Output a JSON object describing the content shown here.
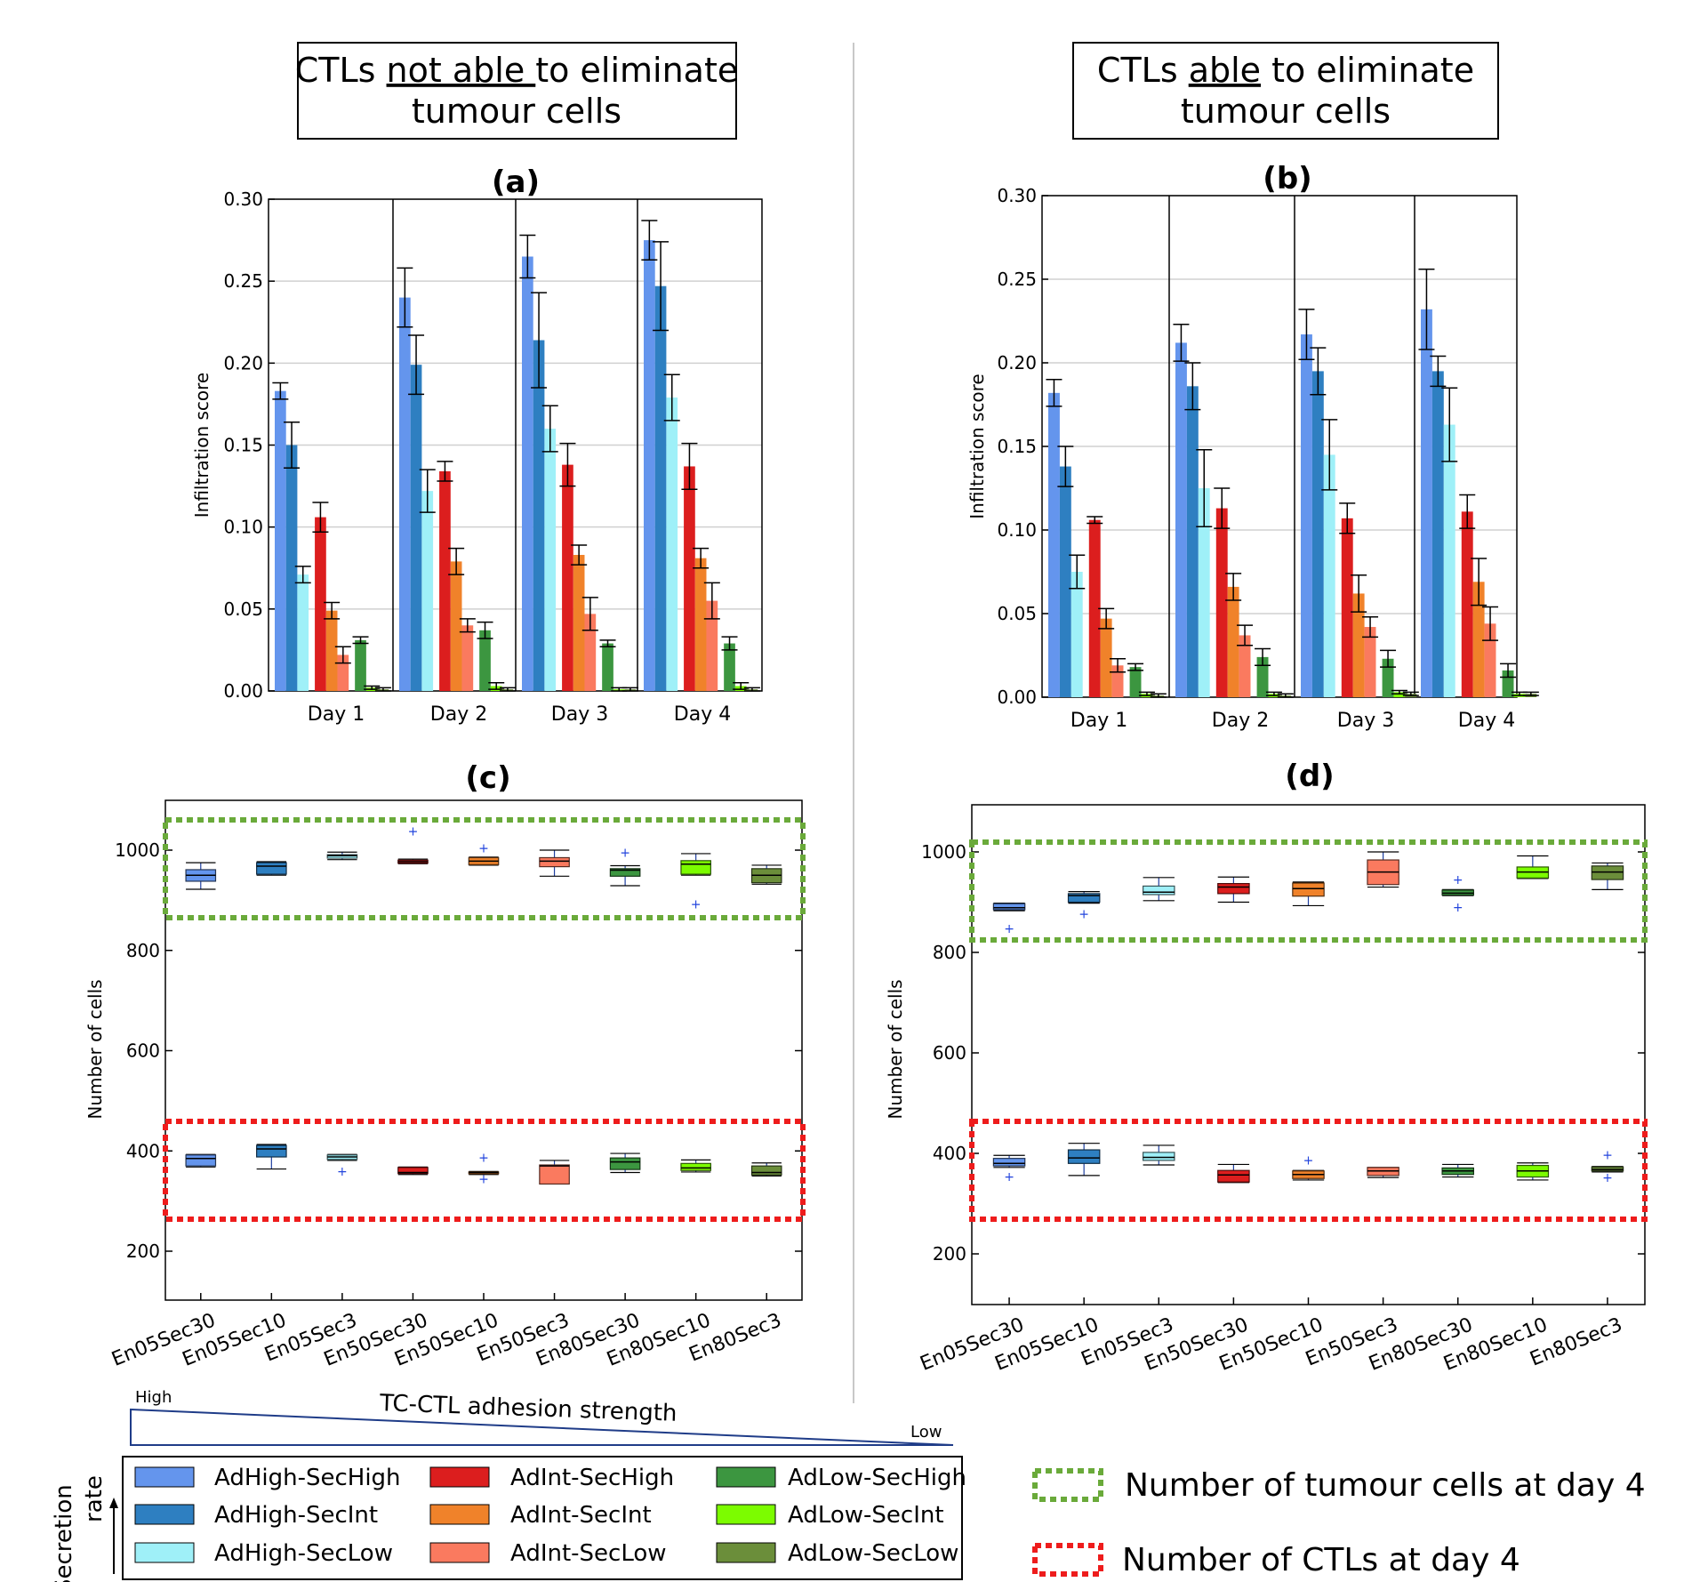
{
  "headers": {
    "left": {
      "pre": "CTLs ",
      "emph": "not able ",
      "post": "to eliminate",
      "line2": "tumour cells"
    },
    "right": {
      "pre": "CTLs ",
      "emph": "able",
      "post": " to eliminate",
      "line2": "tumour cells"
    }
  },
  "panel_labels": {
    "a": "(a)",
    "b": "(b)",
    "c": "(c)",
    "d": "(d)"
  },
  "colors": {
    "AdHigh-SecHigh": "#6495ed",
    "AdHigh-SecInt": "#2e7fc1",
    "AdHigh-SecLow": "#9ff0f8",
    "AdInt-SecHigh": "#dc1e1e",
    "AdInt-SecInt": "#f0822a",
    "AdInt-SecLow": "#fa7a5f",
    "AdLow-SecHigh": "#3c9640",
    "AdLow-SecInt": "#7cfc00",
    "AdLow-SecLow": "#6b8e3a",
    "tumour_box": "#6aaa3a",
    "ctl_box": "#ee1c1c"
  },
  "legend": {
    "entries": [
      "AdHigh-SecHigh",
      "AdHigh-SecInt",
      "AdHigh-SecLow",
      "AdInt-SecHigh",
      "AdInt-SecInt",
      "AdInt-SecLow",
      "AdLow-SecHigh",
      "AdLow-SecInt",
      "AdLow-SecLow"
    ],
    "secretion_label_1": "Secretion",
    "secretion_label_2": "rate",
    "adhesion_title": "TC-CTL adhesion strength",
    "adhesion_high": "High",
    "adhesion_low": "Low"
  },
  "key": {
    "tumour": "Number of tumour cells at day 4",
    "ctl": "Number of CTLs at day 4"
  },
  "chart_data": [
    {
      "id": "a",
      "type": "bar",
      "title": "(a)",
      "ylabel": "Infiltration score",
      "xlabel": "",
      "ylim": [
        0,
        0.3
      ],
      "yticks": [
        "0.00",
        "0.05",
        "0.10",
        "0.15",
        "0.20",
        "0.25",
        "0.30"
      ],
      "categories": [
        "Day 1",
        "Day 2",
        "Day 3",
        "Day 4"
      ],
      "series": [
        {
          "name": "AdHigh-SecHigh",
          "values": [
            0.183,
            0.24,
            0.265,
            0.275
          ],
          "errors": [
            0.005,
            0.018,
            0.013,
            0.012
          ]
        },
        {
          "name": "AdHigh-SecInt",
          "values": [
            0.15,
            0.199,
            0.214,
            0.247
          ],
          "errors": [
            0.014,
            0.018,
            0.029,
            0.027
          ]
        },
        {
          "name": "AdHigh-SecLow",
          "values": [
            0.071,
            0.122,
            0.16,
            0.179
          ],
          "errors": [
            0.005,
            0.013,
            0.014,
            0.014
          ]
        },
        {
          "name": "AdInt-SecHigh",
          "values": [
            0.106,
            0.134,
            0.138,
            0.137
          ],
          "errors": [
            0.009,
            0.006,
            0.013,
            0.014
          ]
        },
        {
          "name": "AdInt-SecInt",
          "values": [
            0.049,
            0.079,
            0.083,
            0.081
          ],
          "errors": [
            0.005,
            0.008,
            0.006,
            0.006
          ]
        },
        {
          "name": "AdInt-SecLow",
          "values": [
            0.022,
            0.04,
            0.047,
            0.055
          ],
          "errors": [
            0.005,
            0.004,
            0.01,
            0.011
          ]
        },
        {
          "name": "AdLow-SecHigh",
          "values": [
            0.031,
            0.037,
            0.029,
            0.029
          ],
          "errors": [
            0.002,
            0.005,
            0.002,
            0.004
          ]
        },
        {
          "name": "AdLow-SecInt",
          "values": [
            0.002,
            0.003,
            0.001,
            0.003
          ],
          "errors": [
            0.001,
            0.002,
            0.001,
            0.002
          ]
        },
        {
          "name": "AdLow-SecLow",
          "values": [
            0.001,
            0.001,
            0.001,
            0.001
          ],
          "errors": [
            0.001,
            0.001,
            0.001,
            0.001
          ]
        }
      ]
    },
    {
      "id": "b",
      "type": "bar",
      "title": "(b)",
      "ylabel": "Infiltration score",
      "xlabel": "",
      "ylim": [
        0,
        0.3
      ],
      "yticks": [
        "0.00",
        "0.05",
        "0.10",
        "0.15",
        "0.20",
        "0.25",
        "0.30"
      ],
      "categories": [
        "Day 1",
        "Day 2",
        "Day 3",
        "Day 4"
      ],
      "series": [
        {
          "name": "AdHigh-SecHigh",
          "values": [
            0.182,
            0.212,
            0.217,
            0.232
          ],
          "errors": [
            0.008,
            0.011,
            0.015,
            0.024
          ]
        },
        {
          "name": "AdHigh-SecInt",
          "values": [
            0.138,
            0.186,
            0.195,
            0.195
          ],
          "errors": [
            0.012,
            0.014,
            0.014,
            0.009
          ]
        },
        {
          "name": "AdHigh-SecLow",
          "values": [
            0.075,
            0.125,
            0.145,
            0.163
          ],
          "errors": [
            0.01,
            0.023,
            0.021,
            0.022
          ]
        },
        {
          "name": "AdInt-SecHigh",
          "values": [
            0.106,
            0.113,
            0.107,
            0.111
          ],
          "errors": [
            0.002,
            0.012,
            0.009,
            0.01
          ]
        },
        {
          "name": "AdInt-SecInt",
          "values": [
            0.047,
            0.066,
            0.062,
            0.069
          ],
          "errors": [
            0.006,
            0.008,
            0.011,
            0.014
          ]
        },
        {
          "name": "AdInt-SecLow",
          "values": [
            0.019,
            0.037,
            0.042,
            0.044
          ],
          "errors": [
            0.004,
            0.006,
            0.006,
            0.01
          ]
        },
        {
          "name": "AdLow-SecHigh",
          "values": [
            0.018,
            0.024,
            0.023,
            0.016
          ],
          "errors": [
            0.002,
            0.005,
            0.005,
            0.004
          ]
        },
        {
          "name": "AdLow-SecInt",
          "values": [
            0.002,
            0.002,
            0.003,
            0.002
          ],
          "errors": [
            0.001,
            0.001,
            0.001,
            0.001
          ]
        },
        {
          "name": "AdLow-SecLow",
          "values": [
            0.001,
            0.001,
            0.002,
            0.002
          ],
          "errors": [
            0.001,
            0.001,
            0.001,
            0.001
          ]
        }
      ]
    },
    {
      "id": "c",
      "type": "box",
      "title": "(c)",
      "ylabel": "Number of cells",
      "xlabel": "",
      "ylim": [
        100,
        1100
      ],
      "yticks": [
        "200",
        "400",
        "600",
        "800",
        "1000"
      ],
      "categories": [
        "En05Sec30",
        "En05Sec10",
        "En05Sec3",
        "En50Sec30",
        "En50Sec10",
        "En50Sec3",
        "En80Sec30",
        "En80Sec10",
        "En80Sec3"
      ],
      "series_colors": [
        "AdHigh-SecHigh",
        "AdHigh-SecInt",
        "AdHigh-SecLow",
        "AdInt-SecHigh",
        "AdInt-SecInt",
        "AdInt-SecLow",
        "AdLow-SecHigh",
        "AdLow-SecInt",
        "AdLow-SecLow"
      ],
      "tumour": [
        {
          "min": 922,
          "q1": 938,
          "med": 950,
          "q3": 961,
          "max": 975,
          "outliers": []
        },
        {
          "min": 950,
          "q1": 952,
          "med": 968,
          "q3": 975,
          "max": 977,
          "outliers": []
        },
        {
          "min": 981,
          "q1": 984,
          "med": 989,
          "q3": 991,
          "max": 996,
          "outliers": []
        },
        {
          "min": 973,
          "q1": 974,
          "med": 977,
          "q3": 980,
          "max": 982,
          "outliers": [
            1038
          ]
        },
        {
          "min": 970,
          "q1": 971,
          "med": 978,
          "q3": 985,
          "max": 986,
          "outliers": [
            1004
          ]
        },
        {
          "min": 948,
          "q1": 967,
          "med": 978,
          "q3": 985,
          "max": 1000,
          "outliers": []
        },
        {
          "min": 929,
          "q1": 948,
          "med": 960,
          "q3": 963,
          "max": 969,
          "outliers": [
            996
          ]
        },
        {
          "min": 950,
          "q1": 952,
          "med": 972,
          "q3": 979,
          "max": 993,
          "outliers": [
            893
          ]
        },
        {
          "min": 932,
          "q1": 935,
          "med": 950,
          "q3": 963,
          "max": 970,
          "outliers": []
        }
      ],
      "ctl": [
        {
          "min": 368,
          "q1": 370,
          "med": 385,
          "q3": 392,
          "max": 393,
          "outliers": []
        },
        {
          "min": 364,
          "q1": 388,
          "med": 404,
          "q3": 411,
          "max": 413,
          "outliers": []
        },
        {
          "min": 381,
          "q1": 383,
          "med": 388,
          "q3": 392,
          "max": 393,
          "outliers": [
            360
          ]
        },
        {
          "min": 353,
          "q1": 355,
          "med": 357,
          "q3": 367,
          "max": 368,
          "outliers": []
        },
        {
          "min": 353,
          "q1": 356,
          "med": 357,
          "q3": 358,
          "max": 359,
          "outliers": [
            387,
            345
          ]
        },
        {
          "min": 334,
          "q1": 334,
          "med": 370,
          "q3": 372,
          "max": 381,
          "outliers": []
        },
        {
          "min": 357,
          "q1": 363,
          "med": 378,
          "q3": 386,
          "max": 395,
          "outliers": []
        },
        {
          "min": 358,
          "q1": 361,
          "med": 366,
          "q3": 375,
          "max": 382,
          "outliers": []
        },
        {
          "min": 350,
          "q1": 352,
          "med": 357,
          "q3": 370,
          "max": 376,
          "outliers": []
        }
      ]
    },
    {
      "id": "d",
      "type": "box",
      "title": "(d)",
      "ylabel": "Number of cells",
      "xlabel": "",
      "ylim": [
        100,
        1100
      ],
      "yticks": [
        "200",
        "400",
        "600",
        "800",
        "1000"
      ],
      "categories": [
        "En05Sec30",
        "En05Sec10",
        "En05Sec3",
        "En50Sec30",
        "En50Sec10",
        "En50Sec3",
        "En80Sec30",
        "En80Sec10",
        "En80Sec3"
      ],
      "series_colors": [
        "AdHigh-SecHigh",
        "AdHigh-SecInt",
        "AdHigh-SecLow",
        "AdInt-SecHigh",
        "AdInt-SecInt",
        "AdInt-SecLow",
        "AdLow-SecHigh",
        "AdLow-SecInt",
        "AdLow-SecLow"
      ],
      "tumour": [
        {
          "min": 883,
          "q1": 885,
          "med": 889,
          "q3": 897,
          "max": 898,
          "outliers": [
            848
          ]
        },
        {
          "min": 898,
          "q1": 900,
          "med": 913,
          "q3": 917,
          "max": 921,
          "outliers": [
            877
          ]
        },
        {
          "min": 903,
          "q1": 915,
          "med": 920,
          "q3": 932,
          "max": 949,
          "outliers": []
        },
        {
          "min": 900,
          "q1": 917,
          "med": 930,
          "q3": 937,
          "max": 950,
          "outliers": []
        },
        {
          "min": 893,
          "q1": 912,
          "med": 927,
          "q3": 938,
          "max": 940,
          "outliers": []
        },
        {
          "min": 930,
          "q1": 935,
          "med": 960,
          "q3": 984,
          "max": 1000,
          "outliers": []
        },
        {
          "min": 913,
          "q1": 914,
          "med": 918,
          "q3": 924,
          "max": 925,
          "outliers": [
            945,
            890
          ]
        },
        {
          "min": 947,
          "q1": 948,
          "med": 960,
          "q3": 970,
          "max": 992,
          "outliers": []
        },
        {
          "min": 925,
          "q1": 945,
          "med": 960,
          "q3": 972,
          "max": 978,
          "outliers": []
        }
      ],
      "ctl": [
        {
          "min": 372,
          "q1": 375,
          "med": 380,
          "q3": 390,
          "max": 396,
          "outliers": [
            354
          ]
        },
        {
          "min": 356,
          "q1": 380,
          "med": 391,
          "q3": 407,
          "max": 420,
          "outliers": []
        },
        {
          "min": 377,
          "q1": 386,
          "med": 392,
          "q3": 402,
          "max": 416,
          "outliers": []
        },
        {
          "min": 342,
          "q1": 343,
          "med": 357,
          "q3": 366,
          "max": 378,
          "outliers": []
        },
        {
          "min": 347,
          "q1": 350,
          "med": 358,
          "q3": 365,
          "max": 366,
          "outliers": [
            387
          ]
        },
        {
          "min": 352,
          "q1": 356,
          "med": 365,
          "q3": 372,
          "max": 372,
          "outliers": []
        },
        {
          "min": 353,
          "q1": 358,
          "med": 365,
          "q3": 371,
          "max": 378,
          "outliers": []
        },
        {
          "min": 347,
          "q1": 353,
          "med": 365,
          "q3": 376,
          "max": 381,
          "outliers": []
        },
        {
          "min": 363,
          "q1": 365,
          "med": 368,
          "q3": 373,
          "max": 374,
          "outliers": [
            397,
            352
          ]
        }
      ]
    }
  ]
}
